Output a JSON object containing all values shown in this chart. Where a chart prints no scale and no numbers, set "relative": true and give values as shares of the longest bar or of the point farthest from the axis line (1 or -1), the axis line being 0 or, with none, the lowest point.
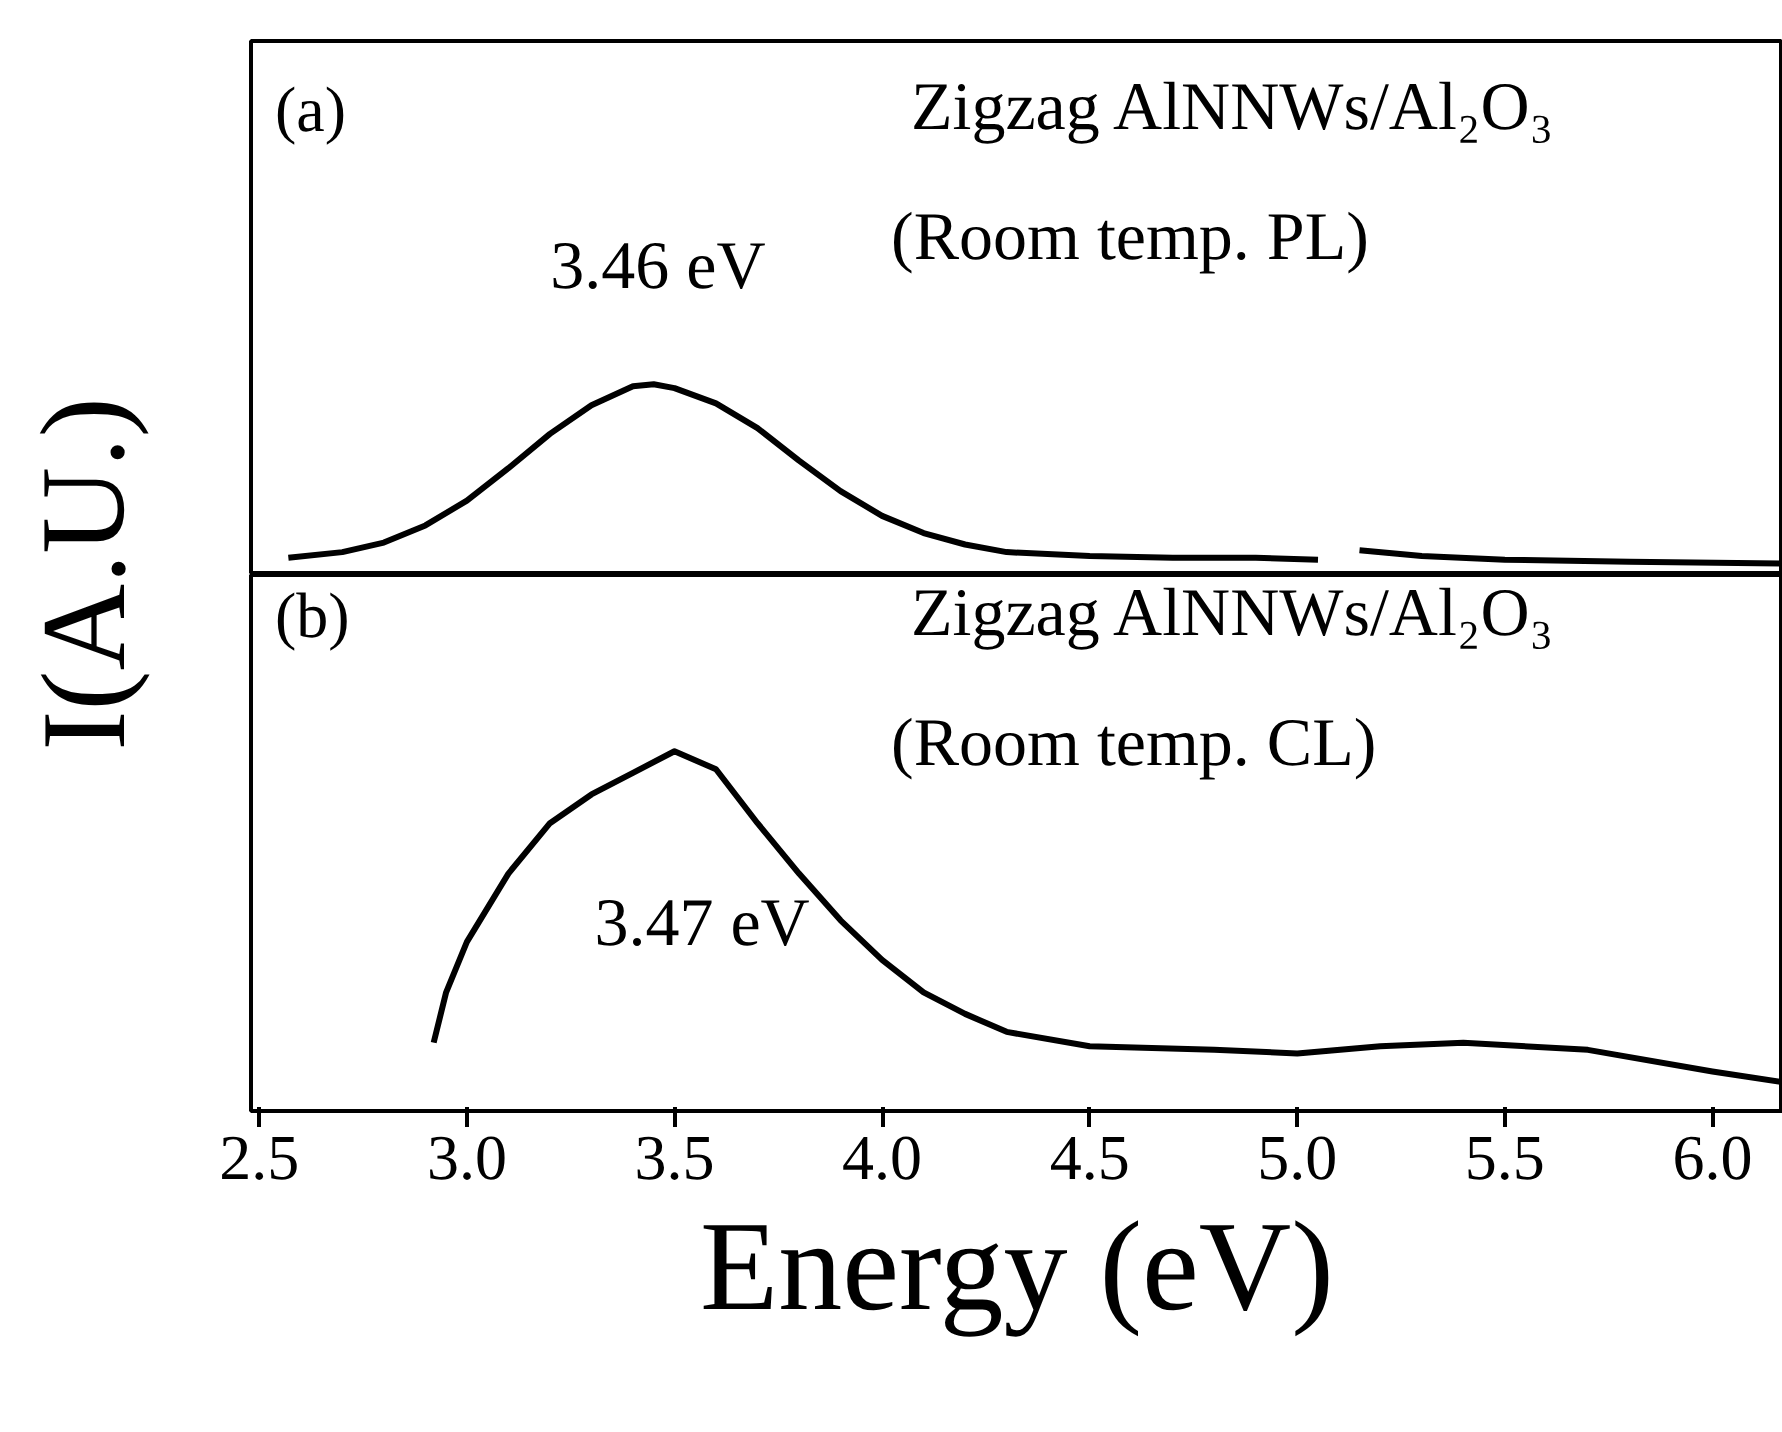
{
  "chart_data": [
    {
      "type": "line",
      "relative": true,
      "ylabel": "I(A.U.)",
      "xlim": [
        2.48,
        6.17
      ],
      "tick_labels": false,
      "grid": false,
      "annotations": [
        "(a)",
        "Zigzag AlNNWs/Al₂O₃",
        "(Room temp. PL)",
        {
          "text": "3.46 eV",
          "x": 3.46,
          "y": 1.0
        }
      ],
      "x": [
        2.57,
        2.7,
        2.8,
        2.9,
        3.0,
        3.1,
        3.2,
        3.3,
        3.4,
        3.45,
        3.5,
        3.6,
        3.7,
        3.8,
        3.9,
        4.0,
        4.1,
        4.2,
        4.3,
        4.5,
        4.7,
        4.9,
        5.05,
        5.1,
        5.15,
        5.3,
        5.5,
        5.8,
        6.17
      ],
      "series": [
        {
          "color": "#000000",
          "values": [
            0.09,
            0.12,
            0.17,
            0.26,
            0.39,
            0.56,
            0.74,
            0.89,
            0.99,
            1.0,
            0.98,
            0.9,
            0.77,
            0.6,
            0.44,
            0.31,
            0.22,
            0.16,
            0.12,
            0.1,
            0.09,
            0.09,
            0.08,
            null,
            0.13,
            0.1,
            0.08,
            0.07,
            0.06
          ]
        }
      ]
    },
    {
      "type": "line",
      "relative": true,
      "xlabel": "Energy (eV)",
      "xlim": [
        2.48,
        6.17
      ],
      "xticks": [
        2.5,
        {
          "value": 3,
          "label": "3.0"
        },
        3.5,
        {
          "value": 4,
          "label": "4.0"
        },
        4.5,
        {
          "value": 5,
          "label": "5.0"
        },
        5.5,
        {
          "value": 6,
          "label": "6.0"
        }
      ],
      "tick_labels": "x",
      "grid": false,
      "annotations": [
        "(b)",
        "Zigzag AlNNWs/Al₂O₃",
        "(Room temp. CL)",
        {
          "text": "3.47 eV",
          "x": 3.47,
          "y": 1.0
        }
      ],
      "x": [
        2.92,
        2.95,
        3.0,
        3.1,
        3.2,
        3.3,
        3.4,
        3.5,
        3.6,
        3.7,
        3.8,
        3.9,
        4.0,
        4.1,
        4.2,
        4.3,
        4.5,
        4.8,
        5.0,
        5.2,
        5.4,
        5.7,
        6.0,
        6.17
      ],
      "series": [
        {
          "color": "#000000",
          "values": [
            0.19,
            0.33,
            0.47,
            0.66,
            0.8,
            0.88,
            0.94,
            1.0,
            0.95,
            0.8,
            0.66,
            0.53,
            0.42,
            0.33,
            0.27,
            0.22,
            0.18,
            0.17,
            0.16,
            0.18,
            0.19,
            0.17,
            0.11,
            0.08
          ]
        }
      ]
    }
  ]
}
